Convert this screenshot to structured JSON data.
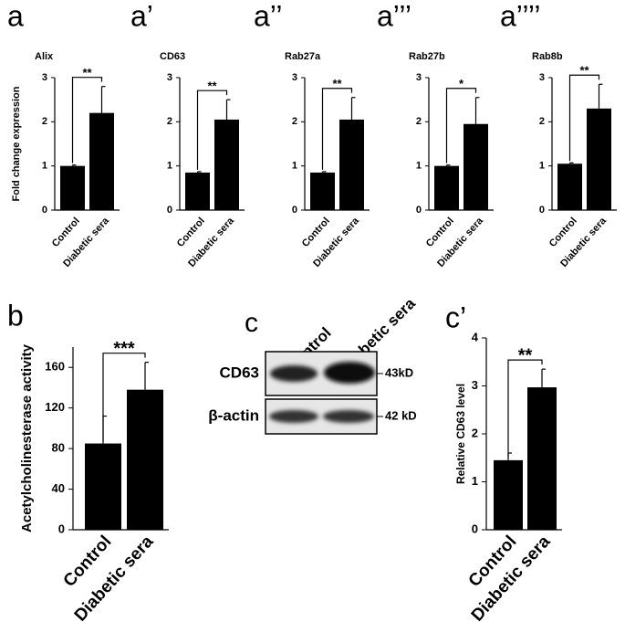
{
  "chart_data": [
    {
      "type": "bar",
      "panel": "a",
      "title": "Alix",
      "y_label": "Fold change expression",
      "categories": [
        "Control",
        "Diabetic sera"
      ],
      "values": [
        1.0,
        2.2
      ],
      "errors": [
        0.02,
        0.6
      ],
      "significance": "**",
      "color": "#000000",
      "ylim": [
        0,
        3
      ],
      "yticks": [
        0,
        1,
        2,
        3
      ]
    },
    {
      "type": "bar",
      "panel": "a’",
      "title": "CD63",
      "categories": [
        "Control",
        "Diabetic sera"
      ],
      "values": [
        0.85,
        2.05
      ],
      "errors": [
        0.02,
        0.45
      ],
      "significance": "**",
      "color": "#000000",
      "ylim": [
        0,
        3
      ],
      "yticks": [
        0,
        1,
        2,
        3
      ]
    },
    {
      "type": "bar",
      "panel": "a’’",
      "title": "Rab27a",
      "categories": [
        "Control",
        "Diabetic sera"
      ],
      "values": [
        0.85,
        2.05
      ],
      "errors": [
        0.02,
        0.5
      ],
      "significance": "**",
      "color": "#000000",
      "ylim": [
        0,
        3
      ],
      "yticks": [
        0,
        1,
        2,
        3
      ]
    },
    {
      "type": "bar",
      "panel": "a’’’",
      "title": "Rab27b",
      "categories": [
        "Control",
        "Diabetic sera"
      ],
      "values": [
        1.0,
        1.95
      ],
      "errors": [
        0.02,
        0.6
      ],
      "significance": "*",
      "color": "#000000",
      "ylim": [
        0,
        3
      ],
      "yticks": [
        0,
        1,
        2,
        3
      ]
    },
    {
      "type": "bar",
      "panel": "a’’’’",
      "title": "Rab8b",
      "categories": [
        "Control",
        "Diabetic sera"
      ],
      "values": [
        1.05,
        2.3
      ],
      "errors": [
        0.02,
        0.55
      ],
      "significance": "**",
      "color": "#000000",
      "ylim": [
        0,
        3
      ],
      "yticks": [
        0,
        1,
        2,
        3
      ]
    },
    {
      "type": "bar",
      "panel": "b",
      "y_label": "Acetylcholinesterase activity",
      "categories": [
        "Control",
        "Diabetic sera"
      ],
      "values": [
        85,
        138
      ],
      "errors": [
        27,
        27
      ],
      "significance": "***",
      "color": "#000000",
      "ylim": [
        0,
        180
      ],
      "yticks": [
        0,
        40,
        80,
        120,
        160
      ]
    },
    {
      "type": "bar",
      "panel": "c’",
      "y_label": "Relative CD63 level",
      "categories": [
        "Control",
        "Diabetic sera"
      ],
      "values": [
        1.45,
        2.97
      ],
      "errors": [
        0.15,
        0.38
      ],
      "significance": "**",
      "color": "#000000",
      "ylim": [
        0,
        4
      ],
      "yticks": [
        0,
        1,
        2,
        3,
        4
      ]
    }
  ],
  "blot": {
    "panel": "c",
    "columns": [
      "Control",
      "Diabetic sera"
    ],
    "rows": [
      {
        "label": "CD63",
        "size": "43kD"
      },
      {
        "label": "β-actin",
        "size": "42 kD"
      }
    ]
  }
}
